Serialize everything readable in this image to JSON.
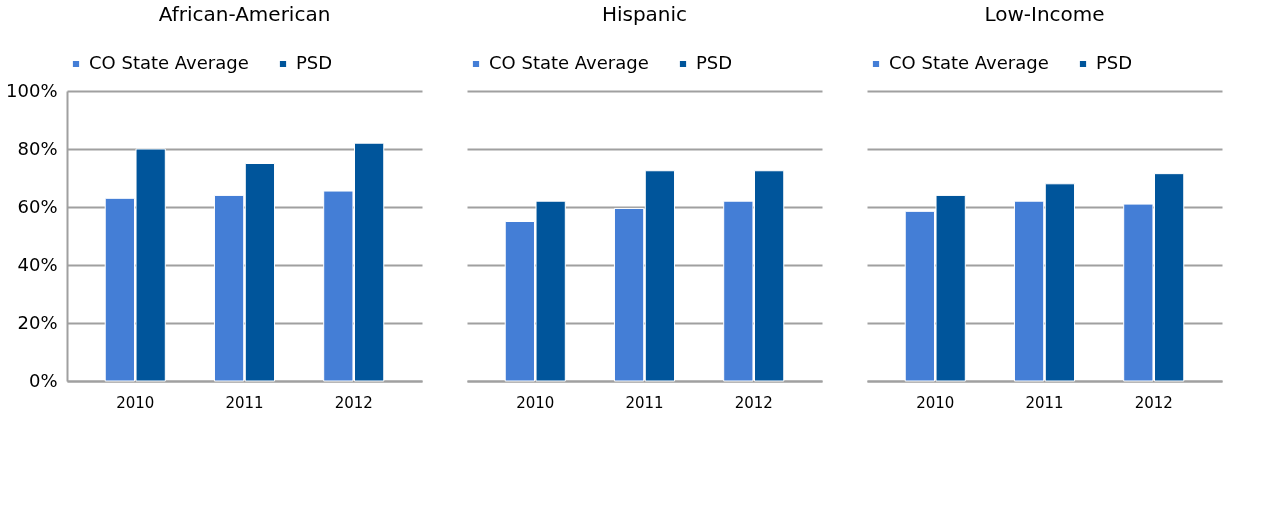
{
  "chart_data": [
    {
      "type": "bar",
      "title": "African-American",
      "categories": [
        "2010",
        "2011",
        "2012"
      ],
      "series": [
        {
          "name": "CO State Average",
          "color": "#447ed6",
          "values": [
            63,
            64,
            65.5
          ]
        },
        {
          "name": "PSD",
          "color": "#00559b",
          "values": [
            80,
            75,
            82
          ]
        }
      ],
      "ylim": [
        0,
        100
      ],
      "yticks": [
        {
          "value": 0,
          "label": "0%"
        },
        {
          "value": 20,
          "label": "20%"
        },
        {
          "value": 40,
          "label": "40%"
        },
        {
          "value": 60,
          "label": "60%"
        },
        {
          "value": 80,
          "label": "80%"
        },
        {
          "value": 100,
          "label": "100%"
        }
      ],
      "grid": "y",
      "legend": "top"
    },
    {
      "type": "bar",
      "title": "Hispanic",
      "categories": [
        "2010",
        "2011",
        "2012"
      ],
      "series": [
        {
          "name": "CO State Average",
          "color": "#447ed6",
          "values": [
            55,
            59.5,
            62
          ]
        },
        {
          "name": "PSD",
          "color": "#00559b",
          "values": [
            62,
            72.5,
            72.5
          ]
        }
      ],
      "ylim": [
        0,
        100
      ],
      "yticks": [
        {
          "value": 0,
          "label": null
        },
        {
          "value": 20,
          "label": null
        },
        {
          "value": 40,
          "label": null
        },
        {
          "value": 60,
          "label": null
        },
        {
          "value": 80,
          "label": null
        },
        {
          "value": 100,
          "label": null
        }
      ],
      "grid": "y",
      "legend": "top",
      "tick_labels": "x"
    },
    {
      "type": "bar",
      "title": "Low-Income",
      "categories": [
        "2010",
        "2011",
        "2012"
      ],
      "series": [
        {
          "name": "CO State Average",
          "color": "#447ed6",
          "values": [
            58.5,
            62,
            61
          ]
        },
        {
          "name": "PSD",
          "color": "#00559b",
          "values": [
            64,
            68,
            71.5
          ]
        }
      ],
      "ylim": [
        0,
        100
      ],
      "yticks": [
        {
          "value": 0,
          "label": null
        },
        {
          "value": 20,
          "label": null
        },
        {
          "value": 40,
          "label": null
        },
        {
          "value": 60,
          "label": null
        },
        {
          "value": 80,
          "label": null
        },
        {
          "value": 100,
          "label": null
        }
      ],
      "grid": "y",
      "legend": "top",
      "tick_labels": "x"
    }
  ]
}
